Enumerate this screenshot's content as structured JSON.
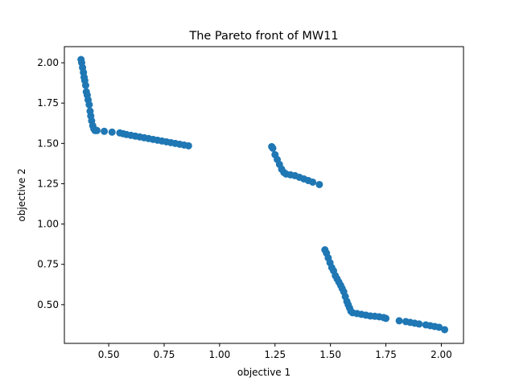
{
  "chart_data": {
    "type": "scatter",
    "title": "The Pareto front of MW11",
    "xlabel": "objective 1",
    "ylabel": "objective 2",
    "xlim": [
      0.3,
      2.1
    ],
    "ylim": [
      0.26,
      2.1
    ],
    "xticks": [
      "0.50",
      "0.75",
      "1.00",
      "1.25",
      "1.50",
      "1.75",
      "2.00"
    ],
    "yticks": [
      "0.50",
      "0.75",
      "1.00",
      "1.25",
      "1.50",
      "1.75",
      "2.00"
    ],
    "grid": false,
    "legend": "none",
    "marker_color": "#1f77b4",
    "series": [
      {
        "x": [
          0.375,
          0.378,
          0.382,
          0.386,
          0.389,
          0.392,
          0.396,
          0.399,
          0.403,
          0.407,
          0.412,
          0.416,
          0.419,
          0.423,
          0.428,
          0.433,
          0.438,
          0.442,
          0.447,
          0.48,
          0.515,
          0.55,
          0.565,
          0.58,
          0.6,
          0.62,
          0.64,
          0.66,
          0.68,
          0.7,
          0.72,
          0.74,
          0.76,
          0.78,
          0.8,
          0.82,
          0.84,
          0.86,
          1.235,
          1.24,
          1.25,
          1.26,
          1.27,
          1.28,
          1.29,
          1.3,
          1.32,
          1.34,
          1.36,
          1.38,
          1.4,
          1.42,
          1.45,
          1.475,
          1.482,
          1.49,
          1.498,
          1.506,
          1.514,
          1.522,
          1.53,
          1.538,
          1.546,
          1.553,
          1.56,
          1.567,
          1.574,
          1.58,
          1.586,
          1.592,
          1.6,
          1.62,
          1.64,
          1.66,
          1.68,
          1.7,
          1.72,
          1.74,
          1.75,
          1.81,
          1.84,
          1.86,
          1.88,
          1.9,
          1.93,
          1.95,
          1.97,
          1.99,
          2.015
        ],
        "y": [
          2.02,
          2.0,
          1.97,
          1.94,
          1.91,
          1.89,
          1.86,
          1.82,
          1.8,
          1.77,
          1.74,
          1.7,
          1.67,
          1.64,
          1.61,
          1.59,
          1.58,
          1.58,
          1.58,
          1.575,
          1.57,
          1.565,
          1.56,
          1.555,
          1.55,
          1.545,
          1.54,
          1.535,
          1.53,
          1.525,
          1.52,
          1.515,
          1.51,
          1.505,
          1.5,
          1.495,
          1.49,
          1.485,
          1.48,
          1.47,
          1.43,
          1.4,
          1.37,
          1.34,
          1.32,
          1.31,
          1.305,
          1.3,
          1.29,
          1.28,
          1.27,
          1.26,
          1.245,
          0.84,
          0.82,
          0.79,
          0.76,
          0.73,
          0.71,
          0.68,
          0.66,
          0.64,
          0.62,
          0.6,
          0.58,
          0.55,
          0.52,
          0.5,
          0.48,
          0.46,
          0.45,
          0.445,
          0.44,
          0.435,
          0.43,
          0.428,
          0.425,
          0.42,
          0.415,
          0.4,
          0.395,
          0.39,
          0.385,
          0.38,
          0.375,
          0.37,
          0.365,
          0.36,
          0.345
        ]
      }
    ]
  }
}
